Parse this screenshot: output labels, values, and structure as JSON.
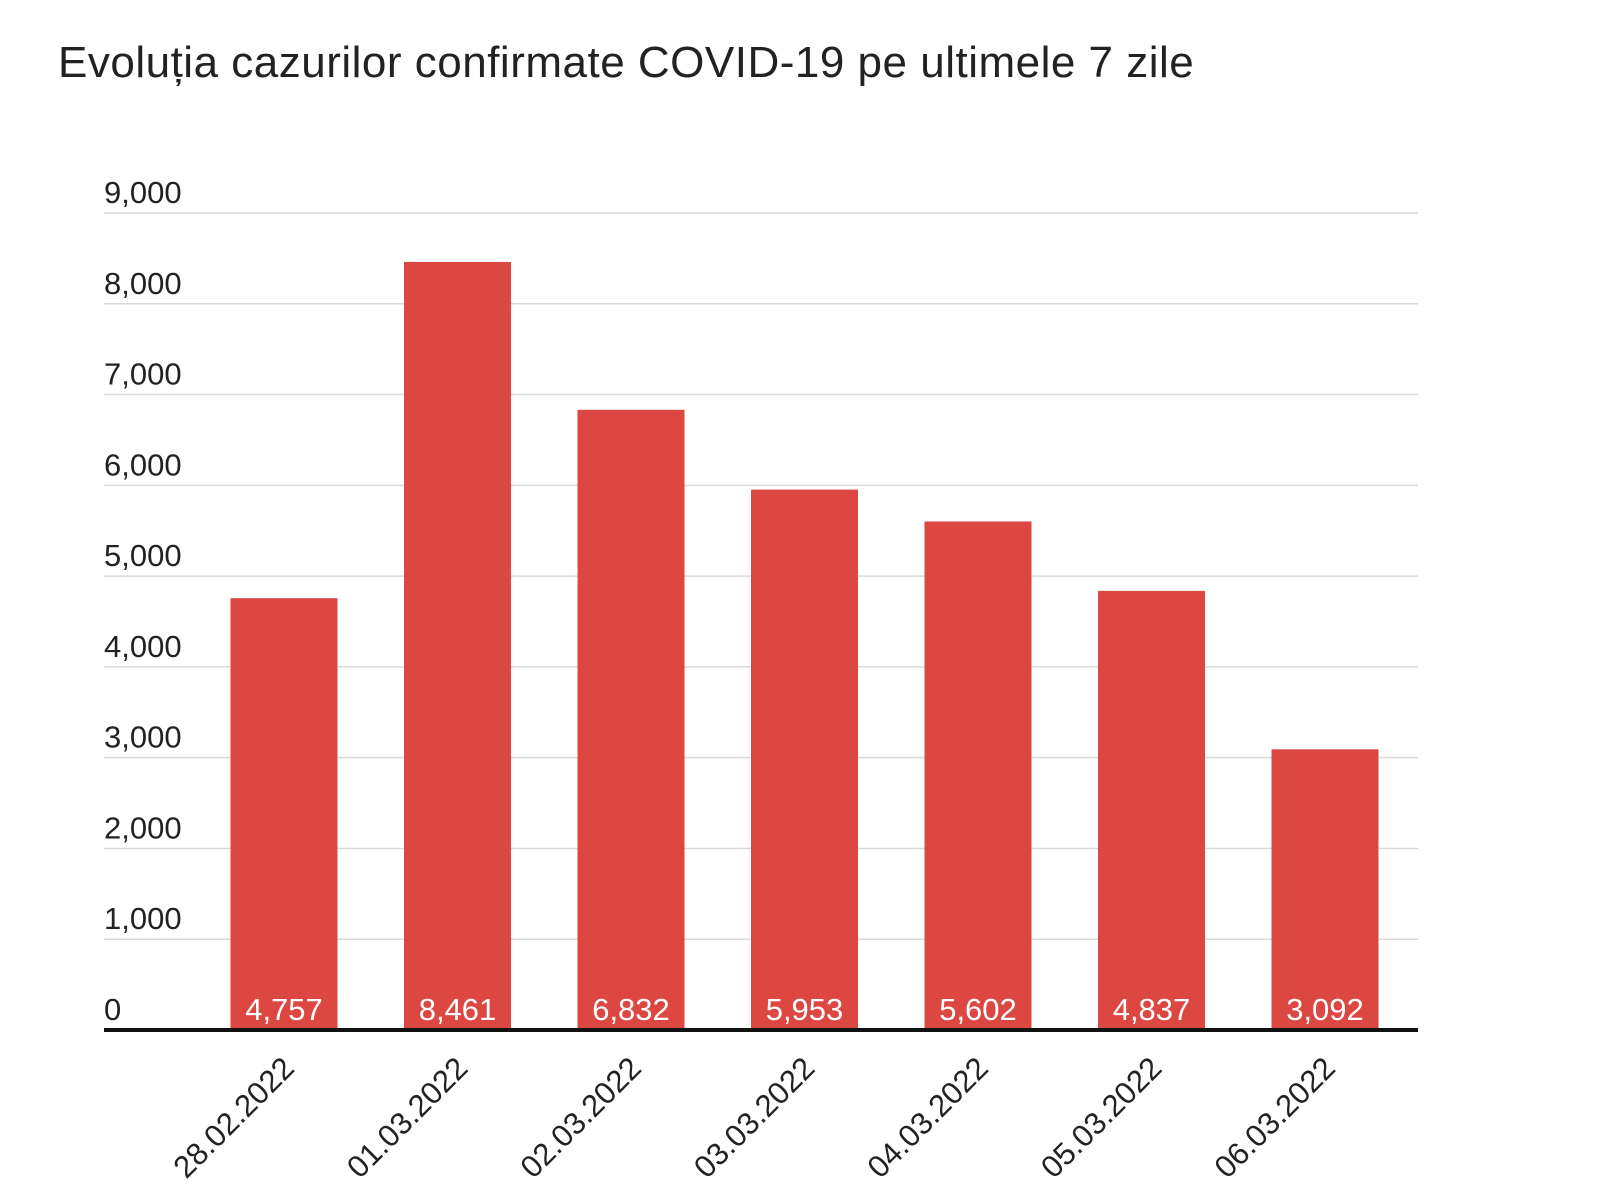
{
  "chart_data": {
    "type": "bar",
    "title": "Evoluția cazurilor confirmate COVID-19 pe ultimele 7 zile",
    "xlabel": "",
    "ylabel": "",
    "categories": [
      "28.02.2022",
      "01.03.2022",
      "02.03.2022",
      "03.03.2022",
      "04.03.2022",
      "05.03.2022",
      "06.03.2022"
    ],
    "values": [
      4757,
      8461,
      6832,
      5953,
      5602,
      4837,
      3092
    ],
    "data_labels": [
      "4,757",
      "8,461",
      "6,832",
      "5,953",
      "5,602",
      "4,837",
      "3,092"
    ],
    "ylim": [
      0,
      9000
    ],
    "yticks": [
      0,
      1000,
      2000,
      3000,
      4000,
      5000,
      6000,
      7000,
      8000,
      9000
    ],
    "ytick_labels": [
      "0",
      "1,000",
      "2,000",
      "3,000",
      "4,000",
      "5,000",
      "6,000",
      "7,000",
      "8,000",
      "9,000"
    ],
    "grid": true,
    "legend": "none",
    "bar_color": "#DD4742",
    "label_color": "#FFFFFF",
    "grid_color": "#D9D9D9",
    "axis_color": "#111111"
  }
}
